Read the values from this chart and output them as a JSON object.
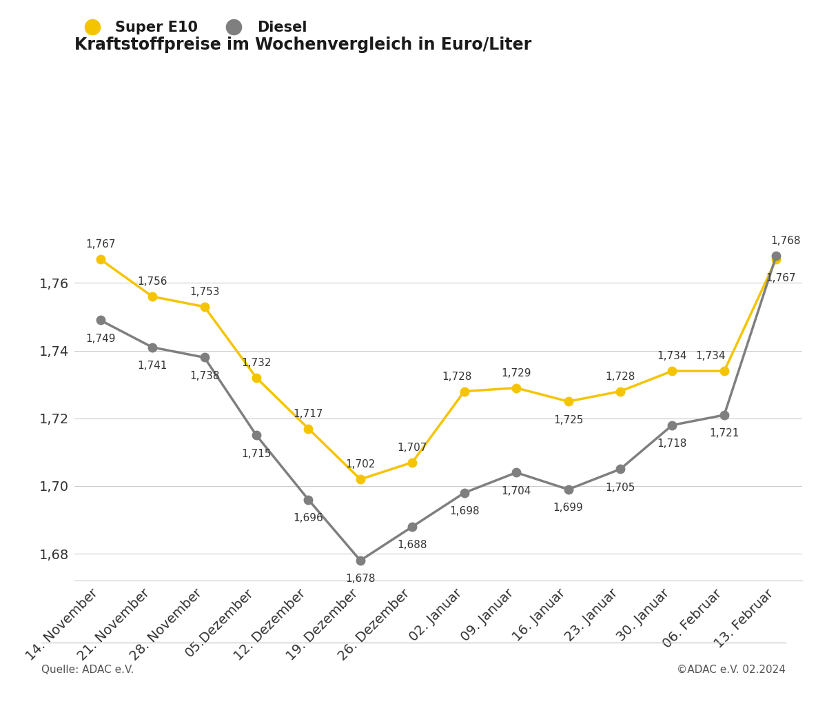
{
  "title": "Kraftstoffpreise im Wochenvergleich in Euro/Liter",
  "categories": [
    "14. November",
    "21. November",
    "28. November",
    "05.Dezember",
    "12. Dezember",
    "19. Dezember",
    "26. Dezember",
    "02. Januar",
    "09. Januar",
    "16. Januar",
    "23. Januar",
    "30. Januar",
    "06. Februar",
    "13. Februar"
  ],
  "super_e10": [
    1.767,
    1.756,
    1.753,
    1.732,
    1.717,
    1.702,
    1.707,
    1.728,
    1.729,
    1.725,
    1.728,
    1.734,
    1.734,
    1.767
  ],
  "diesel": [
    1.749,
    1.741,
    1.738,
    1.715,
    1.696,
    1.678,
    1.688,
    1.698,
    1.704,
    1.699,
    1.705,
    1.718,
    1.721,
    1.768
  ],
  "super_color": "#F5C400",
  "diesel_color": "#7F7F7F",
  "background_color": "#FFFFFF",
  "ylim_min": 1.672,
  "ylim_max": 1.79,
  "yticks": [
    1.68,
    1.7,
    1.72,
    1.74,
    1.76
  ],
  "legend_labels": [
    "Super E10",
    "Diesel"
  ],
  "source_left": "Quelle: ADAC e.V.",
  "source_right": "©ADAC e.V. 02.2024",
  "line_width": 2.5,
  "marker_size": 9,
  "label_fontsize": 11,
  "title_fontsize": 17,
  "legend_fontsize": 15,
  "tick_fontsize": 14
}
